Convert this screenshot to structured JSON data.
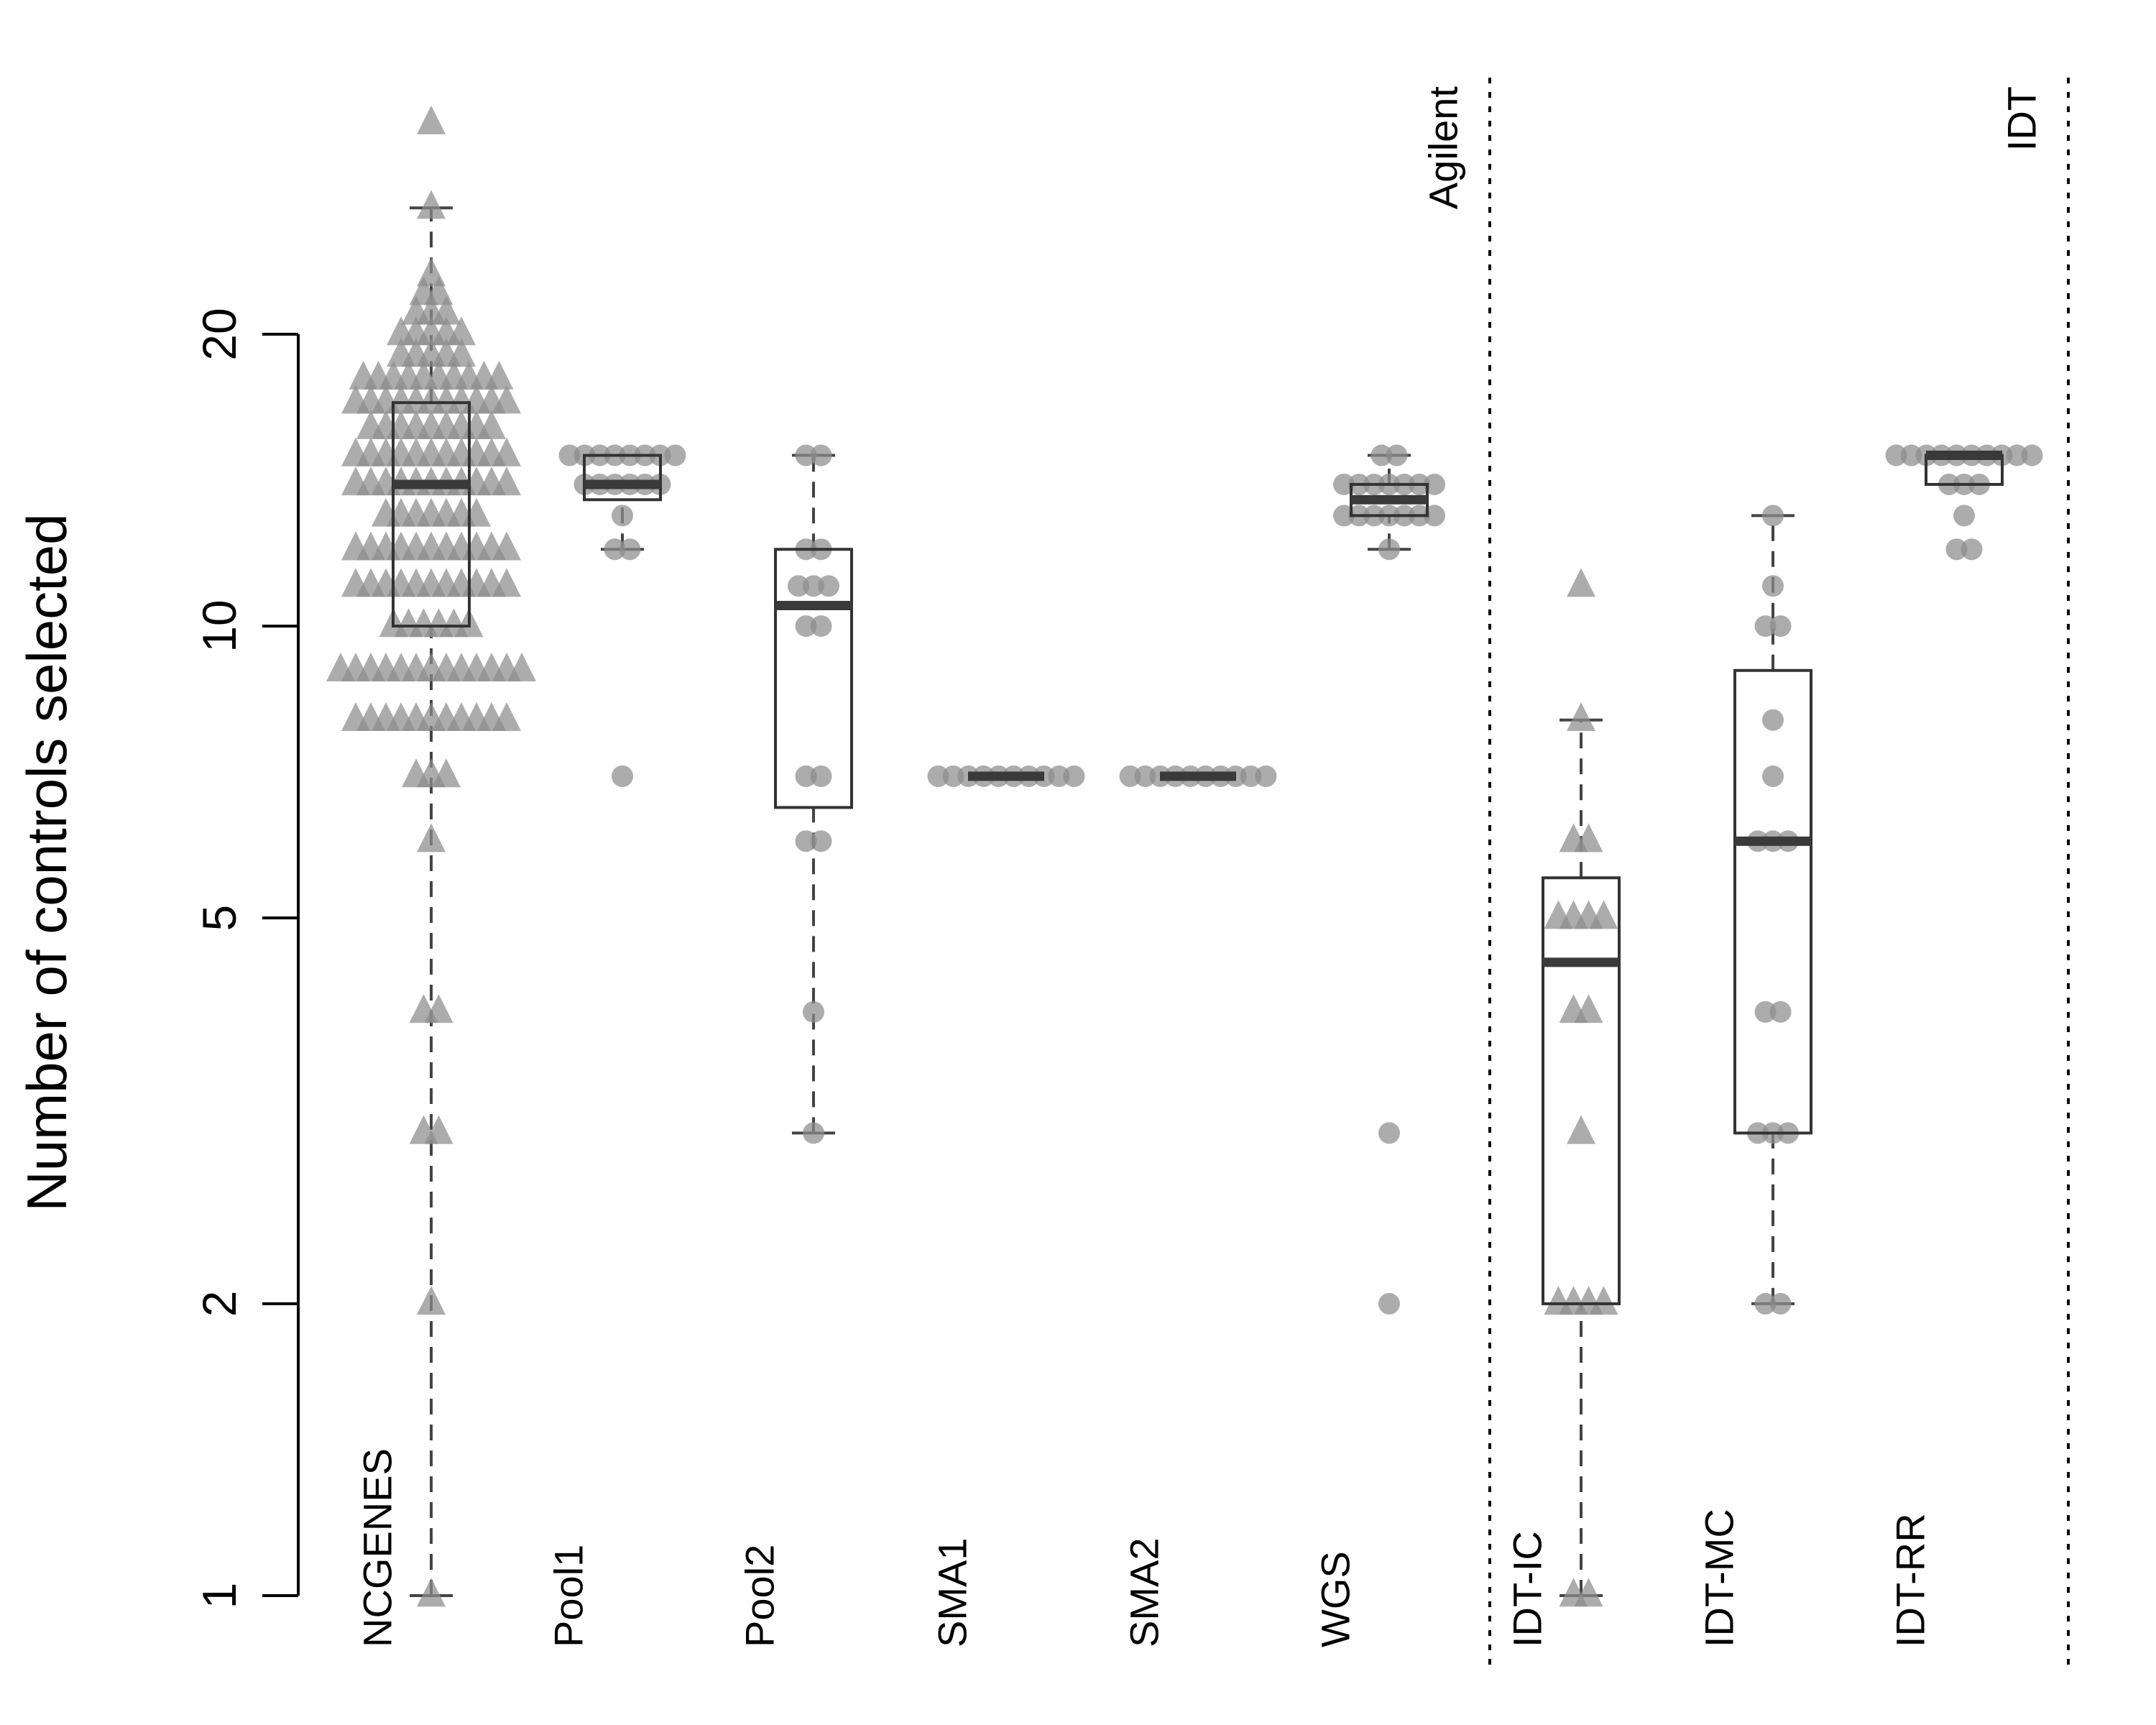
{
  "chart_data": {
    "type": "box",
    "title": "",
    "xlabel": "",
    "ylabel": "Number of controls selected",
    "y_scale": "log",
    "ylim": [
      1,
      34
    ],
    "yticks": [
      1,
      2,
      5,
      10,
      20
    ],
    "ytick_labels": [
      "1",
      "2",
      "5",
      "10",
      "20"
    ],
    "grid": false,
    "legend": "none",
    "colors": {
      "points": "#8c8c8c",
      "box": "#333333",
      "median": "#3a3a3a"
    },
    "categories": [
      "NCGENES",
      "Pool1",
      "Pool2",
      "SMA1",
      "SMA2",
      "WGS",
      "IDT-IC",
      "IDT-MC",
      "IDT-RR"
    ],
    "vendor_groups": [
      {
        "label": "Agilent",
        "categories": [
          "NCGENES",
          "Pool1",
          "Pool2",
          "SMA1",
          "SMA2",
          "WGS"
        ]
      },
      {
        "label": "IDT",
        "categories": [
          "IDT-IC",
          "IDT-MC",
          "IDT-RR"
        ]
      }
    ],
    "series": [
      {
        "category": "NCGENES",
        "marker": "triangle",
        "box": {
          "whisker_low": 1,
          "q1": 10,
          "median": 14,
          "q3": 17,
          "whisker_high": 27
        },
        "values": [
          1,
          2,
          3,
          3,
          4,
          4,
          6,
          7,
          7,
          7,
          8,
          8,
          8,
          8,
          8,
          8,
          8,
          8,
          8,
          8,
          8,
          9,
          9,
          9,
          9,
          9,
          9,
          9,
          9,
          9,
          9,
          9,
          9,
          9,
          10,
          10,
          10,
          10,
          10,
          10,
          11,
          11,
          11,
          11,
          11,
          11,
          11,
          11,
          11,
          11,
          11,
          12,
          12,
          12,
          12,
          12,
          12,
          12,
          12,
          12,
          12,
          12,
          13,
          13,
          13,
          13,
          13,
          13,
          13,
          14,
          14,
          14,
          14,
          14,
          14,
          14,
          14,
          14,
          14,
          14,
          15,
          15,
          15,
          15,
          15,
          15,
          15,
          15,
          15,
          15,
          15,
          16,
          16,
          16,
          16,
          16,
          16,
          16,
          16,
          16,
          17,
          17,
          17,
          17,
          17,
          17,
          17,
          17,
          17,
          17,
          17,
          18,
          18,
          18,
          18,
          18,
          18,
          18,
          18,
          18,
          18,
          19,
          19,
          19,
          19,
          19,
          20,
          20,
          20,
          20,
          20,
          21,
          21,
          21,
          22,
          22,
          23,
          27,
          33
        ]
      },
      {
        "category": "Pool1",
        "marker": "circle",
        "box": {
          "whisker_low": 12,
          "q1": 13.5,
          "median": 14,
          "q3": 15,
          "whisker_high": 15
        },
        "values": [
          7,
          12,
          12,
          13,
          14,
          14,
          14,
          14,
          14,
          14,
          15,
          15,
          15,
          15,
          15,
          15,
          15,
          15
        ]
      },
      {
        "category": "Pool2",
        "marker": "circle",
        "box": {
          "whisker_low": 3,
          "q1": 6.5,
          "median": 10.5,
          "q3": 12,
          "whisker_high": 15
        },
        "values": [
          3,
          4,
          6,
          6,
          7,
          7,
          10,
          10,
          11,
          11,
          11,
          12,
          12,
          15,
          15
        ]
      },
      {
        "category": "SMA1",
        "marker": "circle",
        "box": {
          "whisker_low": 7,
          "q1": 7,
          "median": 7,
          "q3": 7,
          "whisker_high": 7
        },
        "values": [
          7,
          7,
          7,
          7,
          7,
          7,
          7,
          7,
          7,
          7
        ]
      },
      {
        "category": "SMA2",
        "marker": "circle",
        "box": {
          "whisker_low": 7,
          "q1": 7,
          "median": 7,
          "q3": 7,
          "whisker_high": 7
        },
        "values": [
          7,
          7,
          7,
          7,
          7,
          7,
          7,
          7,
          7,
          7
        ]
      },
      {
        "category": "WGS",
        "marker": "circle",
        "box": {
          "whisker_low": 12,
          "q1": 13,
          "median": 13.5,
          "q3": 14,
          "whisker_high": 15
        },
        "values": [
          2,
          3,
          12,
          13,
          13,
          13,
          13,
          13,
          13,
          13,
          14,
          14,
          14,
          14,
          14,
          14,
          14,
          15,
          15
        ]
      },
      {
        "category": "IDT-IC",
        "marker": "triangle",
        "box": {
          "whisker_low": 1,
          "q1": 2,
          "median": 4.5,
          "q3": 5.5,
          "whisker_high": 8
        },
        "values": [
          1,
          1,
          2,
          2,
          2,
          2,
          3,
          4,
          4,
          5,
          5,
          5,
          5,
          6,
          6,
          8,
          11
        ]
      },
      {
        "category": "IDT-MC",
        "marker": "circle",
        "box": {
          "whisker_low": 2,
          "q1": 3,
          "median": 6,
          "q3": 9,
          "whisker_high": 13
        },
        "values": [
          2,
          2,
          3,
          3,
          3,
          4,
          4,
          6,
          6,
          6,
          7,
          8,
          10,
          10,
          11,
          13
        ]
      },
      {
        "category": "IDT-RR",
        "marker": "circle",
        "box": {
          "whisker_low": 14,
          "q1": 14,
          "median": 15,
          "q3": 15,
          "whisker_high": 15
        },
        "values": [
          12,
          12,
          13,
          14,
          14,
          14,
          15,
          15,
          15,
          15,
          15,
          15,
          15,
          15,
          15,
          15
        ]
      }
    ]
  }
}
